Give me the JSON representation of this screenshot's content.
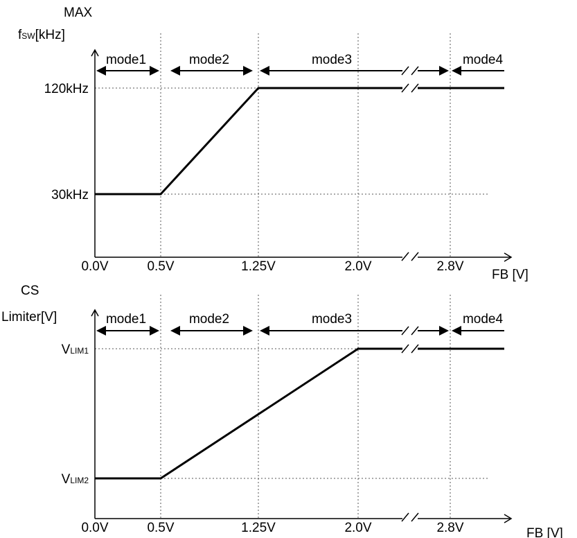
{
  "chart_data": [
    {
      "type": "line",
      "ylabel_line1": "MAX",
      "ylabel_main": "f",
      "ylabel_sub": "SW",
      "ylabel_unit": "[kHz]",
      "xlabel": "FB [V]",
      "x_ticks": [
        "0.0V",
        "0.5V",
        "1.25V",
        "2.0V",
        "2.8V"
      ],
      "x": [
        0.0,
        0.5,
        1.25,
        2.0,
        2.8
      ],
      "y_ticks": [
        {
          "main": "120kHz",
          "sub": "",
          "value": 120
        },
        {
          "main": "30kHz",
          "sub": "",
          "value": 30
        }
      ],
      "series": [
        {
          "points": [
            [
              0.0,
              30
            ],
            [
              0.5,
              30
            ],
            [
              1.25,
              120
            ],
            [
              2.0,
              120
            ],
            [
              2.8,
              120
            ],
            [
              3.2,
              120
            ]
          ]
        }
      ],
      "modes": [
        "mode1",
        "mode2",
        "mode3",
        "mode4"
      ],
      "axis_break": true
    },
    {
      "type": "line",
      "ylabel_line1": "CS",
      "ylabel_main": "Limiter[V]",
      "ylabel_sub": "",
      "ylabel_unit": "",
      "xlabel": "FB [V]",
      "x_ticks": [
        "0.0V",
        "0.5V",
        "1.25V",
        "2.0V",
        "2.8V"
      ],
      "x": [
        0.0,
        0.5,
        1.25,
        2.0,
        2.8
      ],
      "y_ticks": [
        {
          "main": "V",
          "sub": "LIM1",
          "value": 1
        },
        {
          "main": "V",
          "sub": "LIM2",
          "value": 0
        }
      ],
      "series": [
        {
          "points": [
            [
              0.0,
              0
            ],
            [
              0.5,
              0
            ],
            [
              2.0,
              1
            ],
            [
              2.8,
              1
            ],
            [
              3.2,
              1
            ]
          ]
        }
      ],
      "modes": [
        "mode1",
        "mode2",
        "mode3",
        "mode4"
      ],
      "axis_break": true
    }
  ]
}
